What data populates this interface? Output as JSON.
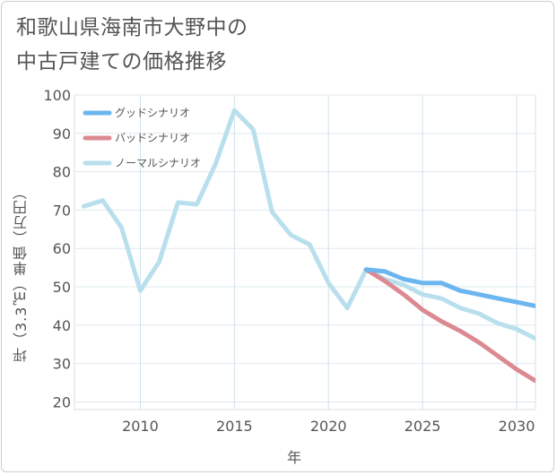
{
  "title_line1": "和歌山県海南市大野中の",
  "title_line2": "中古戸建ての価格推移",
  "chart_data": {
    "type": "line",
    "xlabel": "年",
    "ylabel": "坪（3.3㎡）単価（万円）",
    "xlim": [
      2006.5,
      2031
    ],
    "ylim": [
      18,
      100
    ],
    "xticks": [
      2010,
      2015,
      2020,
      2025,
      2030
    ],
    "yticks": [
      20,
      30,
      40,
      50,
      60,
      70,
      80,
      90,
      100
    ],
    "grid": true,
    "legend_position": "top-left",
    "series": [
      {
        "name": "グッドシナリオ",
        "color": "#6cb6ef",
        "x": [
          2022,
          2023,
          2024,
          2025,
          2026,
          2027,
          2028,
          2029,
          2030,
          2031
        ],
        "y": [
          54.5,
          54,
          52,
          51,
          51,
          49,
          48,
          47,
          46,
          45
        ]
      },
      {
        "name": "バッドシナリオ",
        "color": "#dc8a92",
        "x": [
          2022,
          2023,
          2024,
          2025,
          2026,
          2027,
          2028,
          2029,
          2030,
          2031
        ],
        "y": [
          54.5,
          51.5,
          48,
          44,
          41,
          38.5,
          35.5,
          32,
          28.5,
          25.5
        ]
      },
      {
        "name": "ノーマルシナリオ",
        "color": "#b9dfed",
        "x": [
          2007,
          2008,
          2009,
          2010,
          2011,
          2012,
          2013,
          2014,
          2015,
          2016,
          2017,
          2018,
          2019,
          2020,
          2021,
          2022,
          2023,
          2024,
          2025,
          2026,
          2027,
          2028,
          2029,
          2030,
          2031
        ],
        "y": [
          71,
          72.5,
          65.5,
          49,
          56.5,
          72,
          71.5,
          82,
          96,
          91,
          69.5,
          63.5,
          61,
          51,
          44.5,
          54.5,
          52,
          50.5,
          48,
          47,
          44.5,
          43,
          40.5,
          39,
          36.5
        ]
      }
    ]
  }
}
